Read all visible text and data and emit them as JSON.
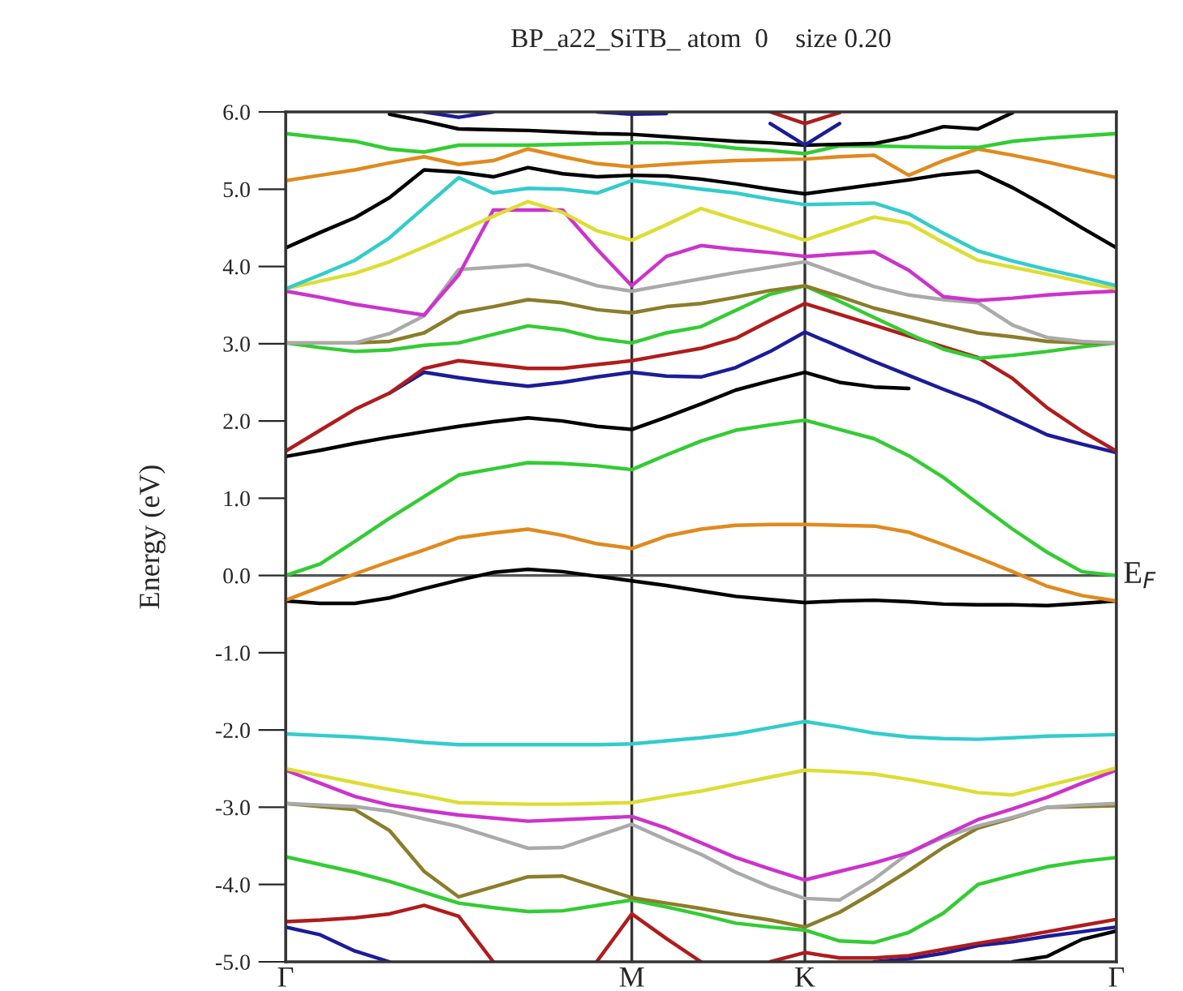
{
  "chart_data": {
    "type": "line",
    "title": "BP_a22_SiTB_ atom  0    size 0.20",
    "ylabel": "Energy (eV)",
    "categories": [
      "Γ",
      null,
      null,
      null,
      null,
      null,
      null,
      null,
      null,
      null,
      "M",
      null,
      null,
      null,
      null,
      "K",
      null,
      null,
      null,
      null,
      null,
      null,
      null,
      null,
      "Γ"
    ],
    "ylim": [
      -5,
      6
    ],
    "yticks": [
      {
        "value": -5,
        "label": "-5.0"
      },
      {
        "value": -4,
        "label": "-4.0"
      },
      {
        "value": -3,
        "label": "-3.0"
      },
      {
        "value": -2,
        "label": "-2.0"
      },
      {
        "value": -1,
        "label": "-1.0"
      },
      {
        "value": 0,
        "label": "0.0"
      },
      {
        "value": 1,
        "label": "1.0"
      },
      {
        "value": 2,
        "label": "2.0"
      },
      {
        "value": 3,
        "label": "3.0"
      },
      {
        "value": 4,
        "label": "4.0"
      },
      {
        "value": 5,
        "label": "5.0"
      },
      {
        "value": 6,
        "label": "6.0"
      }
    ],
    "grid": "x",
    "ref_lines": [
      {
        "axis": "y",
        "value": 0,
        "label": "E$_{F}$",
        "color": "#555555"
      }
    ],
    "series": [
      {
        "color": "#1c1c99",
        "values": [
          -4.55,
          -4.65,
          -4.86,
          -5.0,
          null,
          null,
          null,
          null,
          null,
          null,
          null,
          null,
          null,
          null,
          null,
          null,
          null,
          null,
          null,
          null,
          null,
          null,
          null,
          null,
          null
        ]
      },
      {
        "color": "#1c1c99",
        "values": [
          null,
          null,
          null,
          null,
          null,
          null,
          null,
          null,
          null,
          null,
          null,
          null,
          null,
          null,
          null,
          null,
          null,
          -5.0,
          -4.96,
          -4.89,
          -4.79,
          -4.74,
          -4.67,
          -4.61,
          -4.55
        ]
      },
      {
        "color": "#b01c1c",
        "values": [
          -4.48,
          -4.46,
          -4.43,
          -4.38,
          -4.27,
          -4.41,
          -5.0,
          null,
          null,
          null,
          null,
          null,
          null,
          null,
          null,
          null,
          null,
          null,
          null,
          null,
          null,
          null,
          null,
          null,
          null
        ]
      },
      {
        "color": "#b01c1c",
        "values": [
          null,
          null,
          null,
          null,
          null,
          null,
          null,
          null,
          null,
          -4.99,
          -4.38,
          -4.7,
          -5.0,
          null,
          null,
          null,
          null,
          null,
          null,
          null,
          null,
          null,
          null,
          null,
          null
        ]
      },
      {
        "color": "#b01c1c",
        "values": [
          null,
          null,
          null,
          null,
          null,
          null,
          null,
          null,
          null,
          null,
          null,
          null,
          null,
          null,
          -5.0,
          -4.88,
          -4.95,
          -4.95,
          -4.92,
          -4.84,
          -4.76,
          -4.69,
          -4.61,
          -4.53,
          -4.45
        ]
      },
      {
        "color": "#000000",
        "values": [
          null,
          null,
          null,
          null,
          null,
          null,
          null,
          null,
          null,
          null,
          null,
          null,
          null,
          null,
          null,
          null,
          null,
          null,
          null,
          null,
          null,
          -5.0,
          -4.93,
          -4.71,
          -4.6
        ]
      },
      {
        "color": "#33cc33",
        "values": [
          -3.64,
          -3.74,
          -3.84,
          -3.96,
          -4.1,
          -4.24,
          -4.3,
          -4.35,
          -4.34,
          -4.27,
          -4.2,
          -4.29,
          -4.39,
          -4.5,
          -4.55,
          -4.59,
          -4.73,
          -4.75,
          -4.62,
          -4.37,
          -4.0,
          -3.88,
          -3.77,
          -3.7,
          -3.65
        ]
      },
      {
        "color": "#8b7d2a",
        "values": [
          -2.95,
          -2.99,
          -3.03,
          -3.3,
          -3.83,
          -4.16,
          -4.03,
          -3.9,
          -3.89,
          -4.03,
          -4.17,
          -4.24,
          -4.31,
          -4.39,
          -4.46,
          -4.55,
          -4.36,
          -4.1,
          -3.82,
          -3.52,
          -3.27,
          -3.14,
          -3.0,
          -2.99,
          -2.98
        ]
      },
      {
        "color": "#aaaaaa",
        "values": [
          -2.95,
          -2.97,
          -2.99,
          -3.05,
          -3.15,
          -3.25,
          -3.39,
          -3.53,
          -3.52,
          -3.37,
          -3.22,
          -3.42,
          -3.61,
          -3.84,
          -4.03,
          -4.18,
          -4.2,
          -3.93,
          -3.59,
          -3.39,
          -3.24,
          -3.13,
          -3.0,
          -2.97,
          -2.95
        ]
      },
      {
        "color": "#cc33cc",
        "values": [
          -2.52,
          -2.69,
          -2.86,
          -2.97,
          -3.04,
          -3.1,
          -3.14,
          -3.18,
          -3.16,
          -3.14,
          -3.12,
          -3.27,
          -3.46,
          -3.65,
          -3.8,
          -3.94,
          -3.83,
          -3.72,
          -3.59,
          -3.37,
          -3.16,
          -3.02,
          -2.87,
          -2.69,
          -2.52
        ]
      },
      {
        "color": "#dddd33",
        "values": [
          -2.5,
          -2.59,
          -2.68,
          -2.77,
          -2.85,
          -2.94,
          -2.95,
          -2.96,
          -2.96,
          -2.95,
          -2.94,
          -2.86,
          -2.79,
          -2.7,
          -2.61,
          -2.52,
          -2.54,
          -2.57,
          -2.64,
          -2.72,
          -2.81,
          -2.84,
          -2.72,
          -2.61,
          -2.49
        ]
      },
      {
        "color": "#33cccc",
        "values": [
          -2.05,
          -2.07,
          -2.09,
          -2.12,
          -2.16,
          -2.19,
          -2.19,
          -2.19,
          -2.19,
          -2.19,
          -2.18,
          -2.14,
          -2.1,
          -2.05,
          -1.97,
          -1.89,
          -1.96,
          -2.04,
          -2.09,
          -2.11,
          -2.12,
          -2.1,
          -2.08,
          -2.07,
          -2.06
        ]
      },
      {
        "color": "#000000",
        "values": [
          -0.33,
          -0.36,
          -0.36,
          -0.29,
          -0.17,
          -0.06,
          0.04,
          0.08,
          0.05,
          -0.01,
          -0.07,
          -0.13,
          -0.2,
          -0.27,
          -0.31,
          -0.35,
          -0.33,
          -0.32,
          -0.34,
          -0.37,
          -0.38,
          -0.38,
          -0.39,
          -0.36,
          -0.33
        ]
      },
      {
        "color": "#e08a1e",
        "values": [
          -0.32,
          -0.15,
          0.02,
          0.18,
          0.33,
          0.49,
          0.55,
          0.6,
          0.52,
          0.41,
          0.35,
          0.51,
          0.6,
          0.65,
          0.66,
          0.66,
          0.65,
          0.64,
          0.56,
          0.4,
          0.23,
          0.05,
          -0.14,
          -0.26,
          -0.33
        ]
      },
      {
        "color": "#33cc33",
        "values": [
          0.0,
          0.15,
          0.44,
          0.74,
          1.02,
          1.3,
          1.38,
          1.46,
          1.45,
          1.42,
          1.37,
          1.56,
          1.74,
          1.88,
          1.95,
          2.01,
          1.89,
          1.77,
          1.55,
          1.27,
          0.93,
          0.6,
          0.3,
          0.05,
          0.0
        ]
      },
      {
        "color": "#000000",
        "values": [
          1.54,
          1.62,
          1.71,
          1.79,
          1.86,
          1.93,
          1.99,
          2.04,
          2.0,
          1.93,
          1.89,
          2.05,
          2.22,
          2.4,
          2.52,
          2.63,
          2.5,
          2.44,
          2.42,
          null,
          null,
          null,
          null,
          null,
          null
        ]
      },
      {
        "color": "#1c1c99",
        "values": [
          null,
          null,
          null,
          2.36,
          2.63,
          2.56,
          2.5,
          2.45,
          2.5,
          2.57,
          2.63,
          2.58,
          2.57,
          2.69,
          2.9,
          3.15,
          2.96,
          2.77,
          2.59,
          2.41,
          2.24,
          2.03,
          1.82,
          1.7,
          1.59
        ]
      },
      {
        "color": "#b01c1c",
        "values": [
          1.61,
          1.88,
          2.15,
          2.36,
          2.68,
          2.78,
          2.73,
          2.68,
          2.68,
          2.73,
          2.78,
          2.86,
          2.94,
          3.07,
          3.3,
          3.52,
          3.38,
          3.24,
          3.1,
          2.96,
          2.82,
          2.55,
          2.17,
          1.87,
          1.61
        ]
      },
      {
        "color": "#33cc33",
        "values": [
          3.01,
          2.95,
          2.9,
          2.92,
          2.98,
          3.01,
          3.12,
          3.23,
          3.18,
          3.07,
          3.01,
          3.14,
          3.22,
          3.43,
          3.64,
          3.75,
          3.55,
          3.34,
          3.13,
          2.93,
          2.81,
          2.85,
          2.9,
          2.96,
          3.01
        ]
      },
      {
        "color": "#8b7d2a",
        "values": [
          3.01,
          3.01,
          3.01,
          3.03,
          3.14,
          3.4,
          3.48,
          3.57,
          3.53,
          3.44,
          3.4,
          3.48,
          3.52,
          3.6,
          3.69,
          3.75,
          3.61,
          3.46,
          3.35,
          3.24,
          3.14,
          3.09,
          3.03,
          3.01,
          3.01
        ]
      },
      {
        "color": "#aaaaaa",
        "values": [
          3.01,
          3.01,
          3.01,
          3.13,
          3.36,
          3.96,
          3.99,
          4.02,
          3.89,
          3.75,
          3.68,
          3.76,
          3.84,
          3.92,
          3.99,
          4.06,
          3.9,
          3.74,
          3.63,
          3.57,
          3.53,
          3.24,
          3.08,
          3.03,
          3.01
        ]
      },
      {
        "color": "#cc33cc",
        "values": [
          3.68,
          3.6,
          3.51,
          3.44,
          3.37,
          3.89,
          4.73,
          4.73,
          4.73,
          4.22,
          3.75,
          4.13,
          4.27,
          4.22,
          4.18,
          4.13,
          4.16,
          4.19,
          3.95,
          3.61,
          3.56,
          3.59,
          3.63,
          3.66,
          3.68
        ]
      },
      {
        "color": "#dddd33",
        "values": [
          3.71,
          3.81,
          3.91,
          4.06,
          4.25,
          4.45,
          4.65,
          4.84,
          4.7,
          4.46,
          4.34,
          4.54,
          4.75,
          4.61,
          4.48,
          4.34,
          4.49,
          4.64,
          4.56,
          4.31,
          4.08,
          3.99,
          3.9,
          3.8,
          3.71
        ]
      },
      {
        "color": "#33cccc",
        "values": [
          3.71,
          3.89,
          4.08,
          4.37,
          4.76,
          5.15,
          4.95,
          5.01,
          5.0,
          4.95,
          5.11,
          5.06,
          5.0,
          4.95,
          4.87,
          4.8,
          4.81,
          4.82,
          4.68,
          4.43,
          4.2,
          4.07,
          3.96,
          3.86,
          3.75
        ]
      },
      {
        "color": "#000000",
        "values": [
          4.24,
          4.44,
          4.63,
          4.89,
          5.25,
          5.22,
          5.16,
          5.28,
          5.2,
          5.16,
          5.18,
          5.17,
          5.13,
          5.07,
          5.0,
          4.94,
          5.0,
          5.06,
          5.12,
          5.19,
          5.23,
          5.02,
          4.77,
          4.5,
          4.24
        ]
      },
      {
        "color": "#e08a1e",
        "values": [
          5.11,
          5.18,
          5.25,
          5.34,
          5.42,
          5.32,
          5.37,
          5.52,
          5.42,
          5.33,
          5.29,
          5.32,
          5.35,
          5.37,
          5.38,
          5.39,
          5.42,
          5.44,
          5.18,
          5.37,
          5.52,
          5.44,
          5.35,
          5.25,
          5.15
        ]
      },
      {
        "color": "#33cc33",
        "values": [
          5.72,
          5.67,
          5.62,
          5.52,
          5.48,
          5.57,
          5.57,
          5.57,
          5.58,
          5.59,
          5.6,
          5.6,
          5.58,
          5.53,
          5.5,
          5.46,
          5.56,
          5.56,
          5.55,
          5.54,
          5.54,
          5.62,
          5.66,
          5.69,
          5.72
        ]
      },
      {
        "color": "#000000",
        "values": [
          null,
          null,
          null,
          5.97,
          5.88,
          5.78,
          5.77,
          5.76,
          5.74,
          5.72,
          5.71,
          5.68,
          5.65,
          5.62,
          5.6,
          5.57,
          5.58,
          5.59,
          5.68,
          5.81,
          5.78,
          5.99,
          null,
          null,
          null
        ]
      },
      {
        "color": "#1c1c99",
        "values": [
          null,
          null,
          null,
          null,
          null,
          null,
          null,
          null,
          null,
          null,
          null,
          null,
          null,
          null,
          5.85,
          5.57,
          5.85,
          null,
          null,
          null,
          null,
          null,
          null,
          null,
          null
        ]
      },
      {
        "color": "#b01c1c",
        "values": [
          null,
          null,
          null,
          null,
          null,
          null,
          null,
          null,
          null,
          null,
          null,
          null,
          null,
          null,
          6.0,
          5.85,
          5.99,
          null,
          null,
          null,
          null,
          null,
          null,
          null,
          null
        ]
      },
      {
        "color": "#1c1c99",
        "values": [
          null,
          null,
          null,
          null,
          6.0,
          5.93,
          6.0,
          null,
          null,
          null,
          null,
          null,
          null,
          null,
          null,
          null,
          null,
          null,
          null,
          null,
          null,
          null,
          null,
          null,
          null
        ]
      },
      {
        "color": "#1c1c99",
        "values": [
          null,
          null,
          null,
          null,
          null,
          null,
          null,
          null,
          null,
          6.0,
          5.97,
          5.98,
          null,
          null,
          null,
          null,
          null,
          null,
          null,
          null,
          null,
          null,
          null,
          null,
          null
        ]
      }
    ]
  }
}
